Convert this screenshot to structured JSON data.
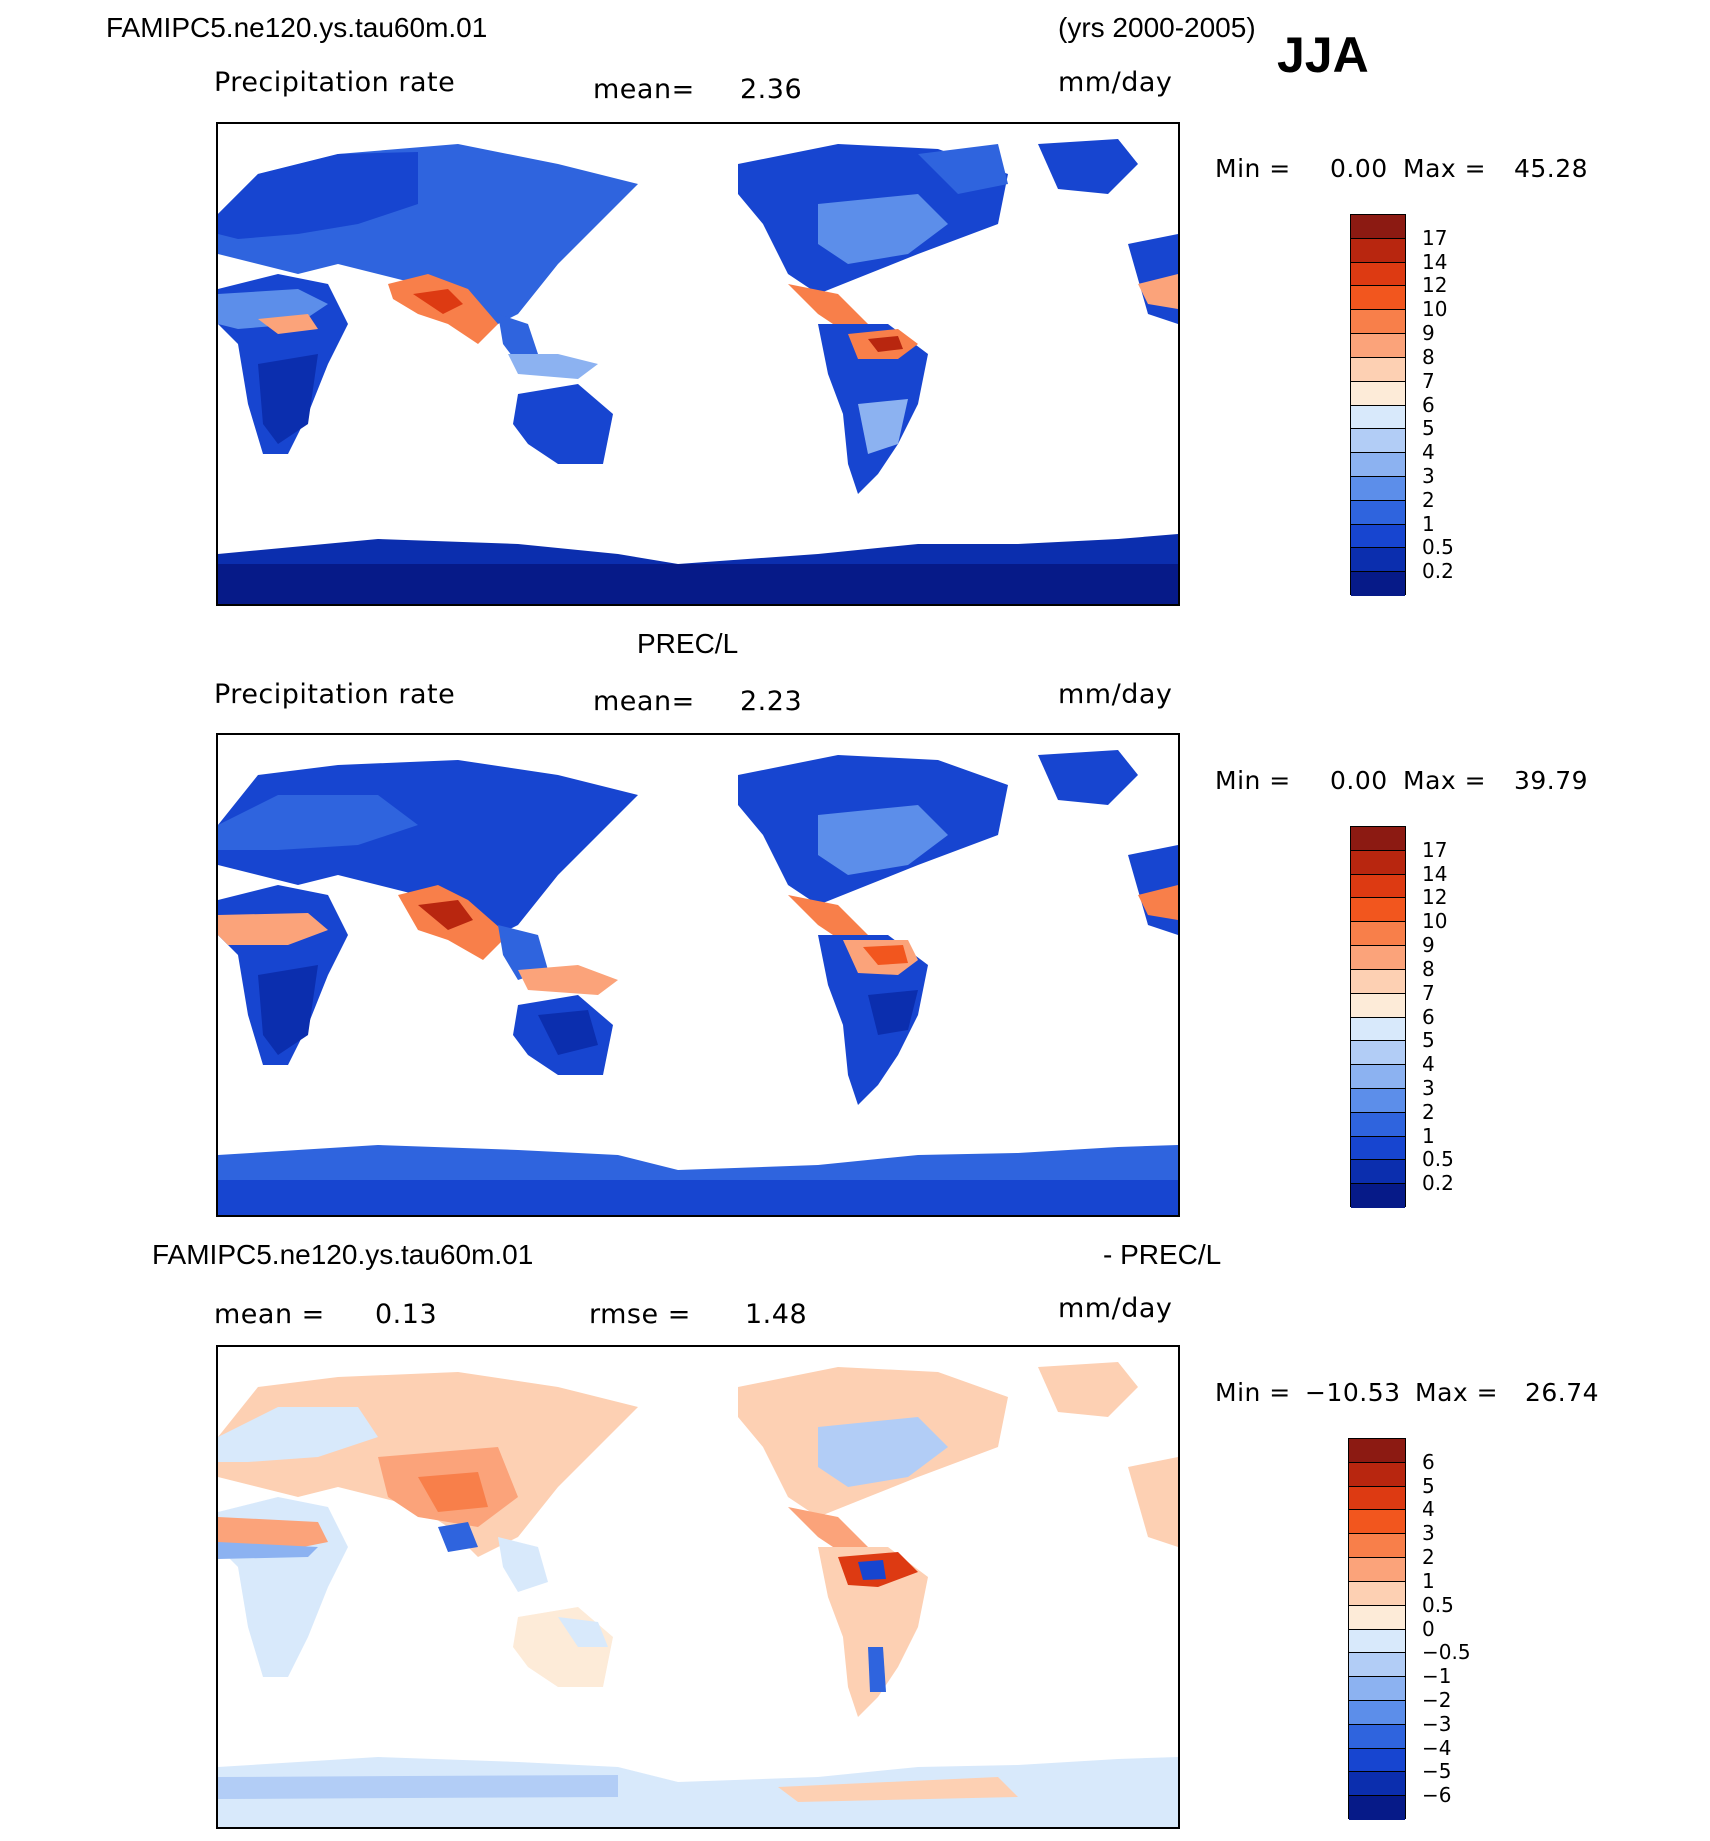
{
  "header": {
    "case_name": "FAMIPC5.ne120.ys.tau60m.01",
    "years": "(yrs 2000-2005)",
    "season": "JJA"
  },
  "panels": [
    {
      "id": "model",
      "title": "",
      "subtitle_left": "Precipitation rate",
      "mean_label": "mean=",
      "mean_value": "2.36",
      "units": "mm/day",
      "min_label": "Min =",
      "min_value": "0.00",
      "max_label": "Max =",
      "max_value": "45.28",
      "colorbar_ticks": [
        "17",
        "14",
        "12",
        "10",
        "9",
        "8",
        "7",
        "6",
        "5",
        "4",
        "3",
        "2",
        "1",
        "0.5",
        "0.2"
      ]
    },
    {
      "id": "obs",
      "title": "PREC/L",
      "subtitle_left": "Precipitation rate",
      "mean_label": "mean=",
      "mean_value": "2.23",
      "units": "mm/day",
      "min_label": "Min =",
      "min_value": "0.00",
      "max_label": "Max =",
      "max_value": "39.79",
      "colorbar_ticks": [
        "17",
        "14",
        "12",
        "10",
        "9",
        "8",
        "7",
        "6",
        "5",
        "4",
        "3",
        "2",
        "1",
        "0.5",
        "0.2"
      ]
    },
    {
      "id": "diff",
      "title_left": "FAMIPC5.ne120.ys.tau60m.01",
      "title_right": "- PREC/L",
      "mean_label": "mean =",
      "mean_value": "0.13",
      "rmse_label": "rmse =",
      "rmse_value": "1.48",
      "units": "mm/day",
      "min_label": "Min =",
      "min_value": "−10.53",
      "max_label": "Max =",
      "max_value": "26.74",
      "colorbar_ticks": [
        "6",
        "5",
        "4",
        "3",
        "2",
        "1",
        "0.5",
        "0",
        "−0.5",
        "−1",
        "−2",
        "−3",
        "−4",
        "−5",
        "−6"
      ]
    }
  ],
  "colors": {
    "precip_scale": [
      "#8c1a12",
      "#b8260f",
      "#dd3a12",
      "#f2561e",
      "#f87f4a",
      "#fba37a",
      "#fdd0b3",
      "#fdebd8",
      "#d8e9fb",
      "#b2cdf6",
      "#8cb2f1",
      "#5c8eea",
      "#2f64de",
      "#1745d0",
      "#0b2eae",
      "#061a88"
    ],
    "diff_scale": [
      "#8c1a12",
      "#b8260f",
      "#dd3a12",
      "#f2561e",
      "#f87f4a",
      "#fba37a",
      "#fdd0b3",
      "#fdebd8",
      "#d8e9fb",
      "#b2cdf6",
      "#8cb2f1",
      "#5c8eea",
      "#2f64de",
      "#1745d0",
      "#0b2eae",
      "#061a88"
    ]
  }
}
